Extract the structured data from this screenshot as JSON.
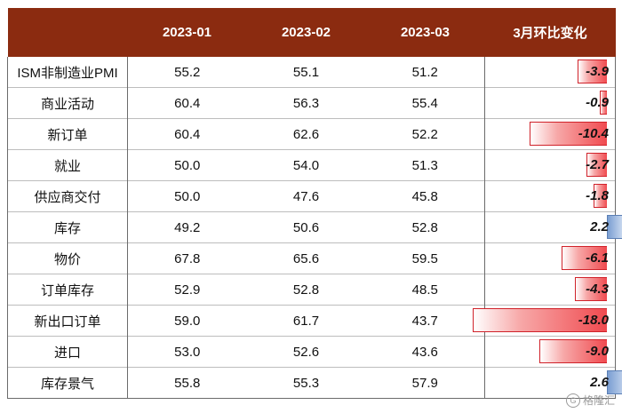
{
  "table": {
    "headers": [
      "",
      "2023-01",
      "2023-02",
      "2023-03",
      "3月环比变化"
    ],
    "rows": [
      {
        "name": "ISM非制造业PMI",
        "v1": "55.2",
        "v2": "55.1",
        "v3": "51.2",
        "chg": "-3.9",
        "chg_value": -3.9
      },
      {
        "name": "商业活动",
        "v1": "60.4",
        "v2": "56.3",
        "v3": "55.4",
        "chg": "-0.9",
        "chg_value": -0.9
      },
      {
        "name": "新订单",
        "v1": "60.4",
        "v2": "62.6",
        "v3": "52.2",
        "chg": "-10.4",
        "chg_value": -10.4
      },
      {
        "name": "就业",
        "v1": "50.0",
        "v2": "54.0",
        "v3": "51.3",
        "chg": "-2.7",
        "chg_value": -2.7
      },
      {
        "name": "供应商交付",
        "v1": "50.0",
        "v2": "47.6",
        "v3": "45.8",
        "chg": "-1.8",
        "chg_value": -1.8
      },
      {
        "name": "库存",
        "v1": "49.2",
        "v2": "50.6",
        "v3": "52.8",
        "chg": "2.2",
        "chg_value": 2.2
      },
      {
        "name": "物价",
        "v1": "67.8",
        "v2": "65.6",
        "v3": "59.5",
        "chg": "-6.1",
        "chg_value": -6.1
      },
      {
        "name": "订单库存",
        "v1": "52.9",
        "v2": "52.8",
        "v3": "48.5",
        "chg": "-4.3",
        "chg_value": -4.3
      },
      {
        "name": "新出口订单",
        "v1": "59.0",
        "v2": "61.7",
        "v3": "43.7",
        "chg": "-18.0",
        "chg_value": -18.0
      },
      {
        "name": "进口",
        "v1": "53.0",
        "v2": "52.6",
        "v3": "43.6",
        "chg": "-9.0",
        "chg_value": -9.0
      },
      {
        "name": "库存景气",
        "v1": "55.8",
        "v2": "55.3",
        "v3": "57.9",
        "chg": "2.6",
        "chg_value": 2.6
      }
    ]
  },
  "watermark": {
    "icon": "G",
    "text": "格隆汇"
  },
  "colors": {
    "header_bg": "#8b2b10",
    "neg_bar": "#f04a4f",
    "pos_bar": "#7a9ed2"
  }
}
